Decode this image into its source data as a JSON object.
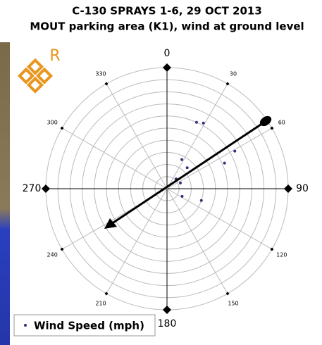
{
  "chart_data": {
    "type": "polar-scatter",
    "title": "C-130 SPRAYS 1-6, 29 OCT 2013",
    "subtitle": "MOUT parking area (K1), wind at ground level",
    "theta_ticks": [
      0,
      30,
      60,
      90,
      120,
      150,
      180,
      210,
      240,
      270,
      300,
      330
    ],
    "rlim": [
      0,
      10
    ],
    "rticks": [
      1,
      2,
      3,
      4,
      5,
      6,
      7,
      8,
      9,
      10
    ],
    "series": [
      {
        "name": "Wind Speed (mph)",
        "color": "#3a2f7a",
        "theta": [
          24,
          29,
          61,
          66,
          27,
          44,
          43,
          67,
          117,
          109
        ],
        "r": [
          6.0,
          6.2,
          6.4,
          5.2,
          2.7,
          2.4,
          1.1,
          1.2,
          1.4,
          3.0
        ]
      }
    ],
    "legend": "bottom-left"
  }
}
